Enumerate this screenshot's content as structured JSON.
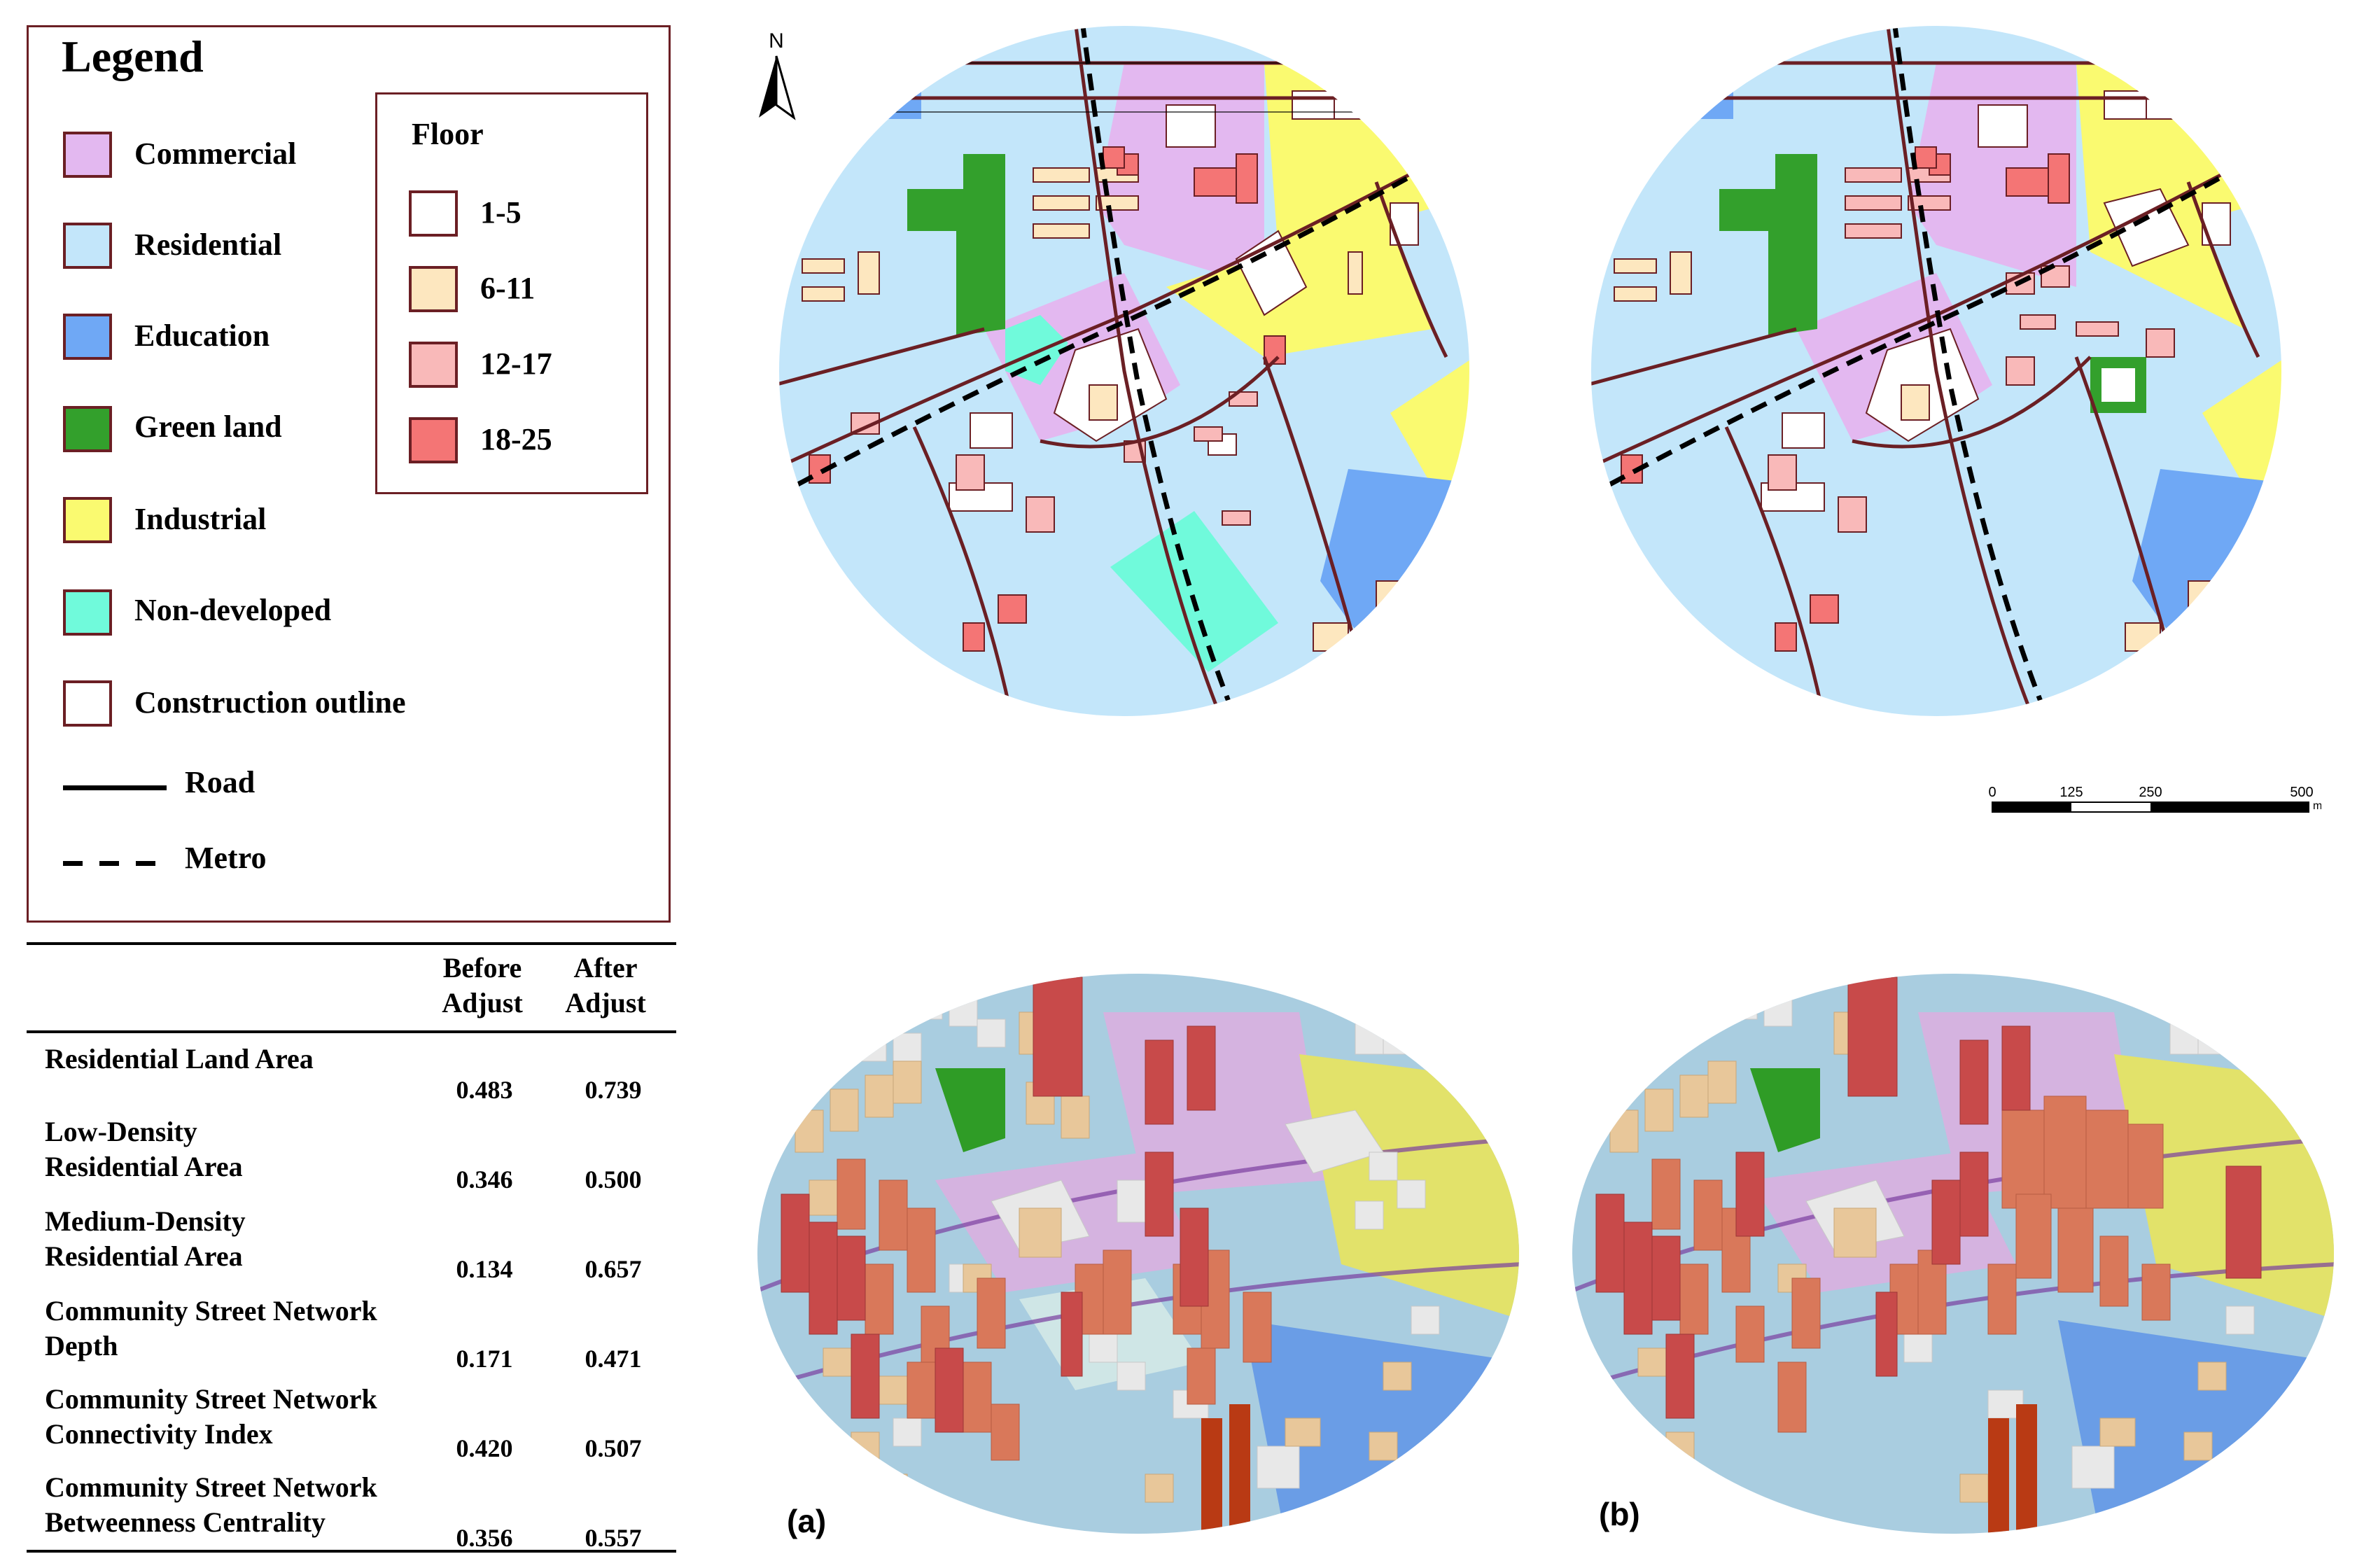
{
  "legend": {
    "title": "Legend",
    "land_use": [
      {
        "label": "Commercial",
        "color": "#e3b8f0"
      },
      {
        "label": "Residential",
        "color": "#c3e6fa"
      },
      {
        "label": "Education",
        "color": "#6fa8f5"
      },
      {
        "label": "Green land",
        "color": "#33a02c"
      },
      {
        "label": "Industrial",
        "color": "#fafa70"
      },
      {
        "label": "Non-developed",
        "color": "#70fadb"
      },
      {
        "label": "Construction outline",
        "color": "#ffffff"
      }
    ],
    "lines": [
      {
        "label": "Road",
        "style": "solid"
      },
      {
        "label": "Metro",
        "style": "dashed"
      }
    ],
    "floor": {
      "title": "Floor",
      "classes": [
        {
          "label": "1-5",
          "color": "#ffffff"
        },
        {
          "label": "6-11",
          "color": "#fde7bf"
        },
        {
          "label": "12-17",
          "color": "#f9b9b9"
        },
        {
          "label": "18-25",
          "color": "#f47575"
        }
      ]
    }
  },
  "table": {
    "headers": [
      "Before\nAdjust",
      "After\nAdjust"
    ],
    "rows": [
      {
        "label": "Residential Land Area",
        "before": "0.483",
        "after": "0.739"
      },
      {
        "label": "Low-Density\nResidential Area",
        "before": "0.346",
        "after": "0.500"
      },
      {
        "label": "Medium-Density\nResidential Area",
        "before": "0.134",
        "after": "0.657"
      },
      {
        "label": "Community Street Network\nDepth",
        "before": "0.171",
        "after": "0.471"
      },
      {
        "label": "Community Street Network\nConnectivity Index",
        "before": "0.420",
        "after": "0.507"
      },
      {
        "label": "Community Street Network\nBetweenness Centrality",
        "before": "0.356",
        "after": "0.557"
      }
    ]
  },
  "maps": {
    "north_label": "N",
    "scale_bar": {
      "ticks": [
        "0",
        "125",
        "250",
        "500"
      ],
      "unit": "m"
    },
    "panel_labels": [
      "(a)",
      "(b)"
    ]
  },
  "colors": {
    "commercial": "#e3b8f0",
    "residential": "#c3e6fa",
    "education": "#6fa8f5",
    "green": "#33a02c",
    "industrial": "#fafa70",
    "nondeveloped": "#70fadb",
    "outline": "#6b1f24",
    "floor_6_11": "#fde7bf",
    "floor_12_17": "#f9b9b9",
    "floor_18_25": "#f47575"
  }
}
